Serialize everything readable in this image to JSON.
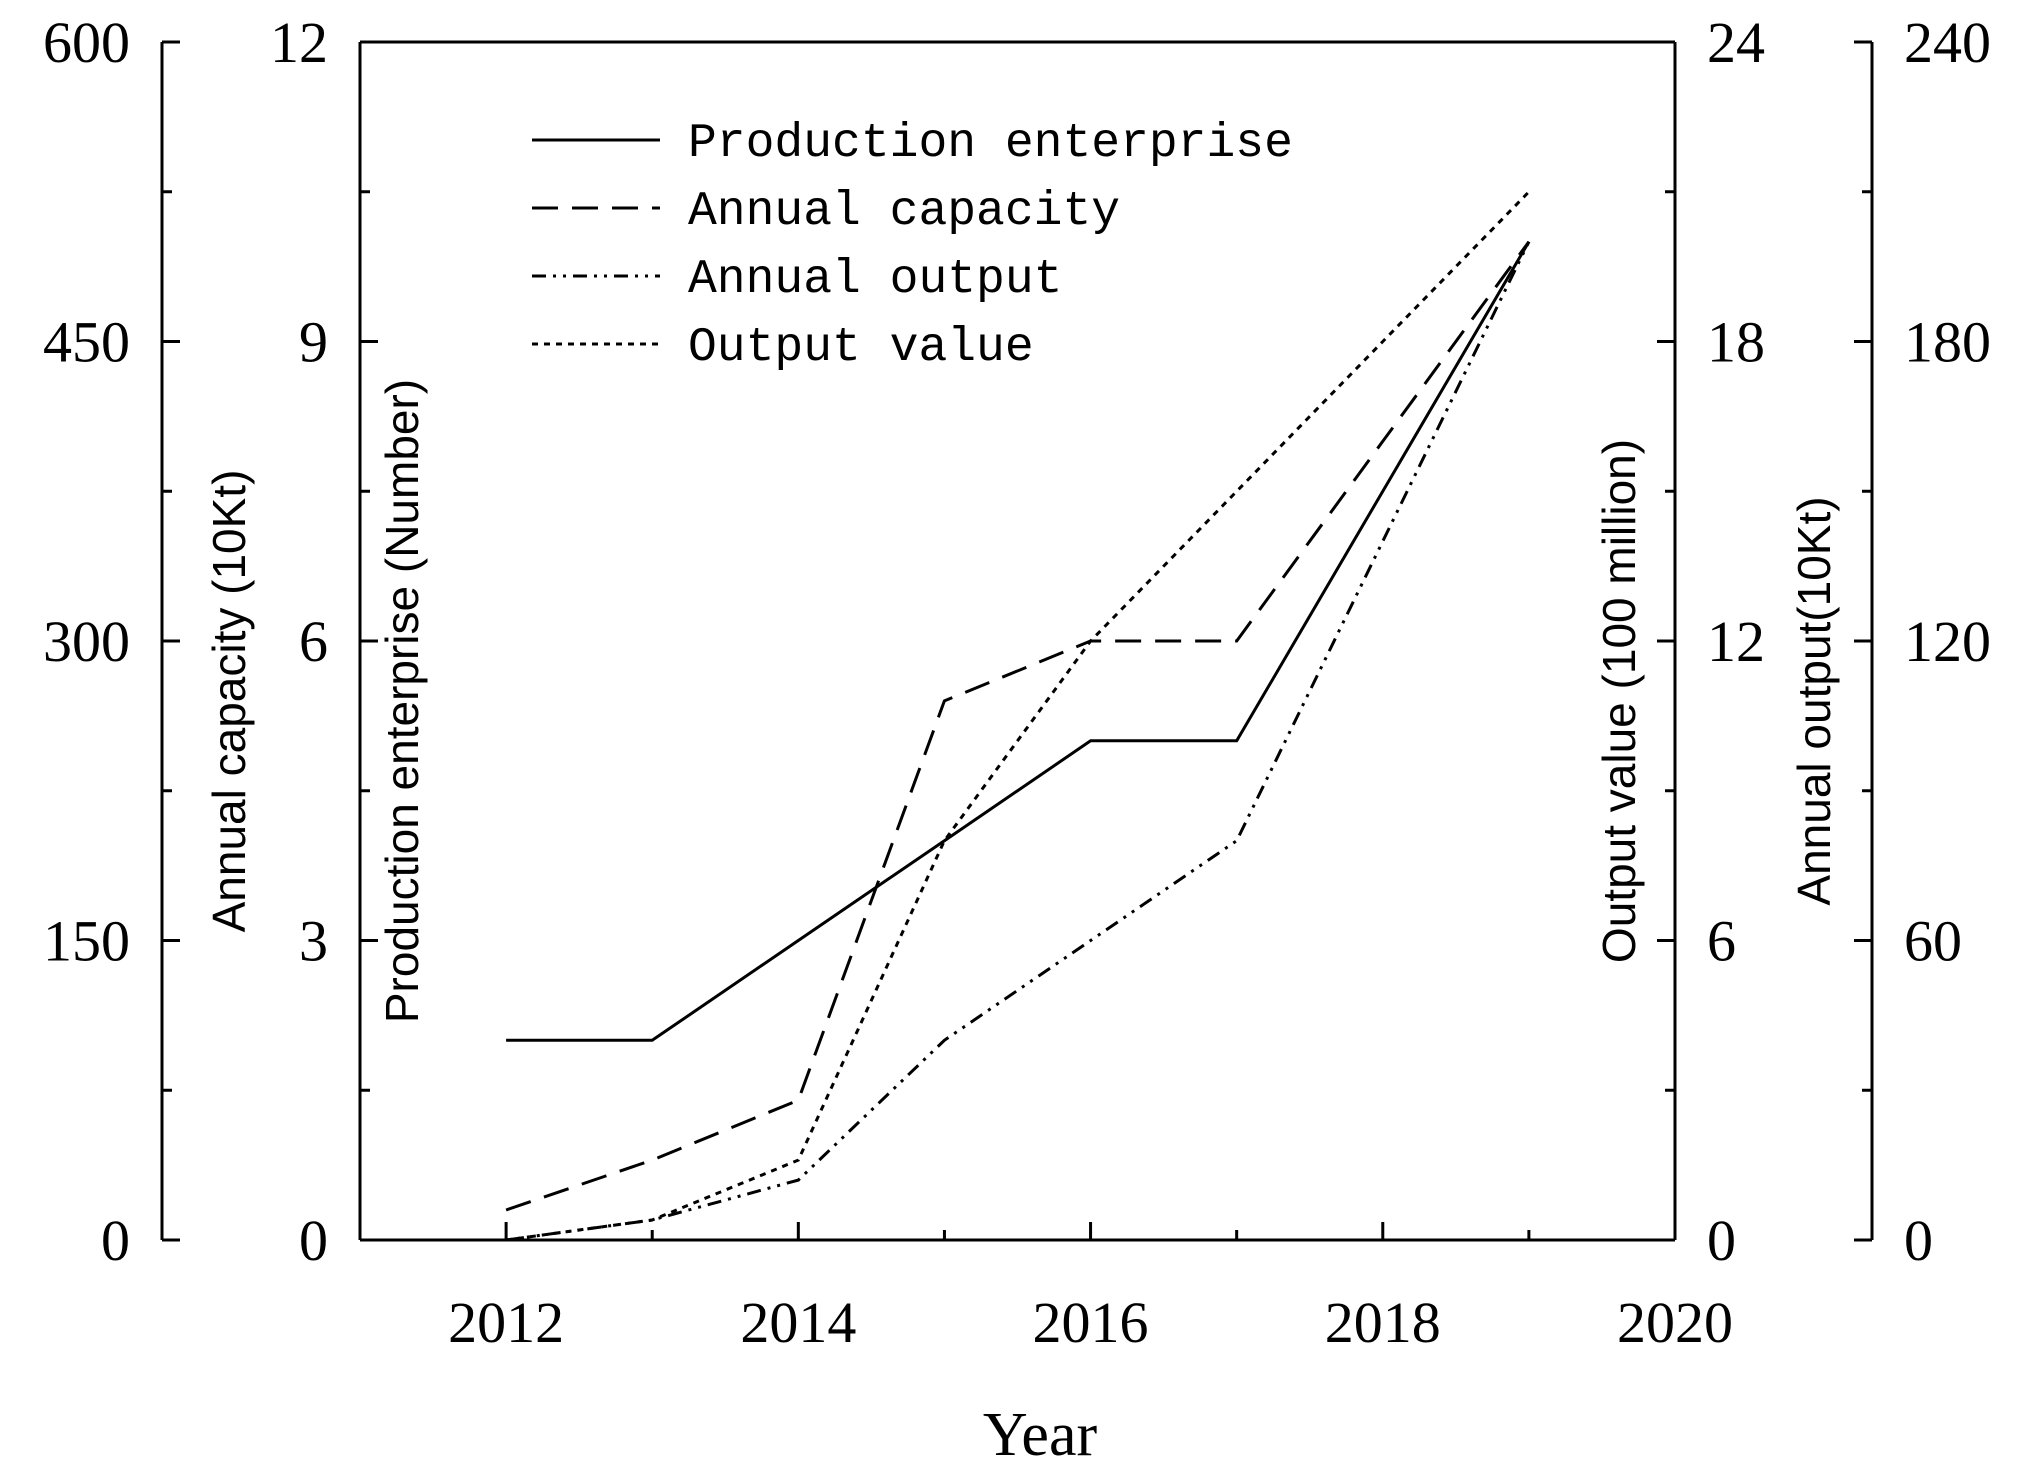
{
  "chart_data": {
    "type": "line",
    "xlabel": "Year",
    "x_ticks": [
      "2012",
      "2014",
      "2016",
      "2018",
      "2020"
    ],
    "xlim": [
      2011,
      2020
    ],
    "axes": [
      {
        "id": "capacity",
        "label": "Annual capacity (10Kt)",
        "ticks": [
          "0",
          "150",
          "300",
          "450",
          "600"
        ],
        "ylim": [
          0,
          600
        ],
        "side": "left-outer"
      },
      {
        "id": "enterprise",
        "label": "Production enterprise (Number)",
        "ticks": [
          "0",
          "3",
          "6",
          "9",
          "12"
        ],
        "ylim": [
          0,
          12
        ],
        "side": "left-inner"
      },
      {
        "id": "value",
        "label": "Output value (100 million)",
        "ticks": [
          "0",
          "6",
          "12",
          "18",
          "24"
        ],
        "ylim": [
          0,
          24
        ],
        "side": "right-inner"
      },
      {
        "id": "output",
        "label": "Annual output(10Kt)",
        "ticks": [
          "0",
          "60",
          "120",
          "180",
          "240"
        ],
        "ylim": [
          0,
          240
        ],
        "side": "right-outer"
      }
    ],
    "series": [
      {
        "name": "Production enterprise",
        "axis": "enterprise",
        "style": "solid",
        "x": [
          2012,
          2013,
          2014,
          2015,
          2016,
          2017,
          2019
        ],
        "values": [
          2,
          2,
          3,
          4,
          5,
          5,
          10
        ]
      },
      {
        "name": "Annual capacity",
        "axis": "capacity",
        "style": "dashed",
        "x": [
          2012,
          2013,
          2014,
          2015,
          2016,
          2017,
          2018,
          2019
        ],
        "values": [
          15,
          40,
          70,
          270,
          300,
          300,
          400,
          500
        ]
      },
      {
        "name": "Annual output",
        "axis": "output",
        "style": "dash-dot-dot",
        "x": [
          2012,
          2013,
          2014,
          2015,
          2016,
          2017,
          2019
        ],
        "values": [
          0,
          4,
          12,
          40,
          60,
          80,
          200
        ]
      },
      {
        "name": "Output value",
        "axis": "value",
        "style": "dotted",
        "x": [
          2012,
          2013,
          2014,
          2015,
          2016,
          2017,
          2018,
          2019
        ],
        "values": [
          0,
          0.4,
          1.6,
          8,
          12,
          15,
          18,
          21
        ]
      }
    ],
    "legend_position": "top-left"
  }
}
